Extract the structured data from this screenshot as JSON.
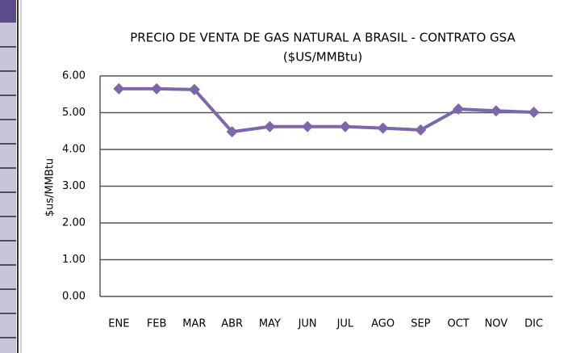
{
  "chart_data": {
    "type": "line",
    "title": "PRECIO DE VENTA DE GAS NATURAL A BRASIL  - CONTRATO GSA",
    "subtitle": "($US/MMBtu)",
    "y_label": "$us/MMBtu",
    "categories": [
      "ENE",
      "FEB",
      "MAR",
      "ABR",
      "MAY",
      "JUN",
      "JUL",
      "AGO",
      "SEP",
      "OCT",
      "NOV",
      "DIC"
    ],
    "series": [
      {
        "name": "Precio",
        "color": "#7b67aa",
        "values": [
          5.65,
          5.65,
          5.63,
          4.48,
          4.62,
          4.62,
          4.62,
          4.58,
          4.53,
          5.1,
          5.05,
          5.01
        ]
      }
    ],
    "ylim": [
      0,
      6
    ],
    "yticks": [
      {
        "value": 0,
        "label": "0.00"
      },
      {
        "value": 1,
        "label": "1.00"
      },
      {
        "value": 2,
        "label": "2.00"
      },
      {
        "value": 3,
        "label": "3.00"
      },
      {
        "value": 4,
        "label": "4.00"
      },
      {
        "value": 5,
        "label": "5.00"
      },
      {
        "value": 6,
        "label": "6.00"
      }
    ],
    "grid": true
  }
}
